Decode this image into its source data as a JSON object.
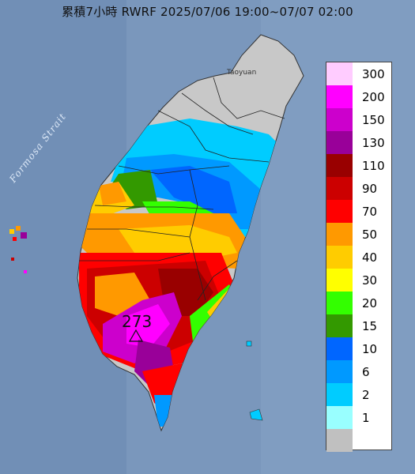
{
  "title": "累積7小時 RWRF 2025/07/06 19:00~07/07 02:00",
  "map": {
    "strait_label": "Formosa Strait",
    "city_label": "Taoyuan",
    "max_value": "273",
    "max_marker_icon": "triangle-icon"
  },
  "legend": {
    "items": [
      {
        "label": "300",
        "color": "#ffccff"
      },
      {
        "label": "200",
        "color": "#ff00ff"
      },
      {
        "label": "150",
        "color": "#cc00cc"
      },
      {
        "label": "130",
        "color": "#990099"
      },
      {
        "label": "110",
        "color": "#990000"
      },
      {
        "label": "90",
        "color": "#cc0000"
      },
      {
        "label": "70",
        "color": "#ff0000"
      },
      {
        "label": "50",
        "color": "#ff9900"
      },
      {
        "label": "40",
        "color": "#ffcc00"
      },
      {
        "label": "30",
        "color": "#ffff00"
      },
      {
        "label": "20",
        "color": "#33ff00"
      },
      {
        "label": "15",
        "color": "#339900"
      },
      {
        "label": "10",
        "color": "#0066ff"
      },
      {
        "label": "6",
        "color": "#0099ff"
      },
      {
        "label": "2",
        "color": "#00ccff"
      },
      {
        "label": "1",
        "color": "#99ffff"
      },
      {
        "label": "",
        "color": "#c0c0c0"
      }
    ]
  }
}
